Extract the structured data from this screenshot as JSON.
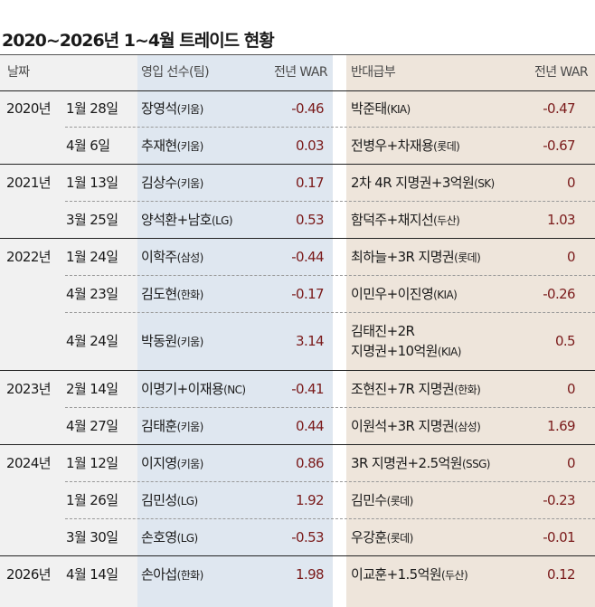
{
  "title": "2020~2026년 1~4월 트레이드 현황",
  "headers": {
    "date": "날짜",
    "incoming": "영입 선수(팀)",
    "incoming_war": "전년 WAR",
    "outgoing": "반대급부",
    "outgoing_war": "전년 WAR"
  },
  "colors": {
    "date_bg": "#f1f1f1",
    "incoming_bg": "#dfe7f0",
    "outgoing_bg": "#eee5db",
    "war_text": "#7a1a1a"
  },
  "rows": [
    {
      "year": "2020년",
      "date": "1월 28일",
      "in_name": "장영석",
      "in_team": "(키움)",
      "in_war": "-0.46",
      "out_lines": [
        {
          "name": "박준태",
          "team": "(KIA)"
        }
      ],
      "out_war": "-0.47"
    },
    {
      "year": "",
      "date": "4월 6일",
      "in_name": "추재현",
      "in_team": "(키움)",
      "in_war": "0.03",
      "out_lines": [
        {
          "name": "전병우+차재용",
          "team": "(롯데)"
        }
      ],
      "out_war": "-0.67"
    },
    {
      "year": "2021년",
      "date": "1월 13일",
      "in_name": "김상수",
      "in_team": "(키움)",
      "in_war": "0.17",
      "out_lines": [
        {
          "name": "2차 4R 지명권+3억원",
          "team": "(SK)"
        }
      ],
      "out_war": "0"
    },
    {
      "year": "",
      "date": "3월 25일",
      "in_name": "양석환+남호",
      "in_team": "(LG)",
      "in_war": "0.53",
      "out_lines": [
        {
          "name": "함덕주+채지선",
          "team": "(두산)"
        }
      ],
      "out_war": "1.03"
    },
    {
      "year": "2022년",
      "date": "1월 24일",
      "in_name": "이학주",
      "in_team": "(삼성)",
      "in_war": "-0.44",
      "out_lines": [
        {
          "name": "최하늘+3R 지명권",
          "team": "(롯데)"
        }
      ],
      "out_war": "0"
    },
    {
      "year": "",
      "date": "4월 23일",
      "in_name": "김도현",
      "in_team": "(한화)",
      "in_war": "-0.17",
      "out_lines": [
        {
          "name": "이민우+이진영",
          "team": "(KIA)"
        }
      ],
      "out_war": "-0.26"
    },
    {
      "year": "",
      "date": "4월 24일",
      "in_name": "박동원",
      "in_team": "(키움)",
      "in_war": "3.14",
      "out_lines": [
        {
          "name": "김태진+2R",
          "team": ""
        },
        {
          "name": "지명권+10억원",
          "team": "(KIA)"
        }
      ],
      "out_war": "0.5"
    },
    {
      "year": "2023년",
      "date": "2월 14일",
      "in_name": "이명기+이재용",
      "in_team": "(NC)",
      "in_war": "-0.41",
      "out_lines": [
        {
          "name": "조현진+7R 지명권",
          "team": "(한화)"
        }
      ],
      "out_war": "0"
    },
    {
      "year": "",
      "date": "4월 27일",
      "in_name": "김태훈",
      "in_team": "(키움)",
      "in_war": "0.44",
      "out_lines": [
        {
          "name": "이원석+3R 지명권",
          "team": "(삼성)"
        }
      ],
      "out_war": "1.69"
    },
    {
      "year": "2024년",
      "date": "1월 12일",
      "in_name": "이지영",
      "in_team": "(키움)",
      "in_war": "0.86",
      "out_lines": [
        {
          "name": "3R 지명권+2.5억원",
          "team": "(SSG)"
        }
      ],
      "out_war": "0"
    },
    {
      "year": "",
      "date": "1월 26일",
      "in_name": "김민성",
      "in_team": "(LG)",
      "in_war": "1.92",
      "out_lines": [
        {
          "name": "김민수",
          "team": "(롯데)"
        }
      ],
      "out_war": "-0.23"
    },
    {
      "year": "",
      "date": "3월 30일",
      "in_name": "손호영",
      "in_team": "(LG)",
      "in_war": "-0.53",
      "out_lines": [
        {
          "name": "우강훈",
          "team": "(롯데)"
        }
      ],
      "out_war": "-0.01"
    },
    {
      "year": "2026년",
      "date": "4월 14일",
      "in_name": "손아섭",
      "in_team": "(한화)",
      "in_war": "1.98",
      "out_lines": [
        {
          "name": "이교훈+1.5억원",
          "team": "(두산)"
        }
      ],
      "out_war": "0.12"
    }
  ]
}
